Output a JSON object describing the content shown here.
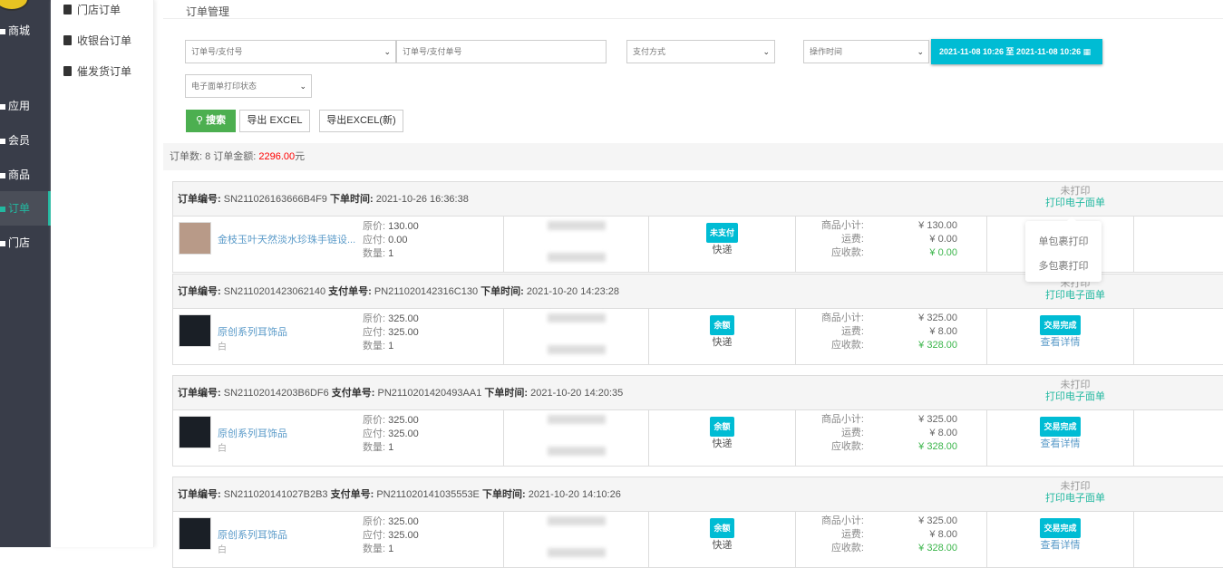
{
  "sidebar": {
    "items": [
      {
        "label": "商城"
      },
      {
        "label": "应用"
      },
      {
        "label": "会员"
      },
      {
        "label": "商品"
      },
      {
        "label": "订单",
        "active": true
      },
      {
        "label": "门店"
      }
    ]
  },
  "submenu": {
    "items": [
      {
        "label": "门店订单"
      },
      {
        "label": "收银台订单"
      },
      {
        "label": "催发货订单"
      }
    ]
  },
  "breadcrumb": "订单管理",
  "filters": {
    "order_type": "订单号/支付号",
    "order_input_placeholder": "订单号/支付单号",
    "pay_method": "支付方式",
    "time_type": "操作时间",
    "date_range": "2021-11-08 10:26 至 2021-11-08 10:26",
    "print_status": "电子面单打印状态"
  },
  "buttons": {
    "search": "搜索",
    "export": "导出 EXCEL",
    "export_new": "导出EXCEL(新)"
  },
  "summary": {
    "count_label": "订单数: 8 订单金额: ",
    "amount": "2296.00",
    "unit": "元"
  },
  "labels": {
    "order_no": "订单编号:",
    "pay_no": "支付单号:",
    "order_time": "下单时间:",
    "orig": "原价: ",
    "due": "应付: ",
    "qty": "数量: ",
    "subtotal": "商品小计:",
    "shipping": "运费:",
    "receivable": "应收款:",
    "unprinted": "未打印",
    "print_waybill": "打印电子面单",
    "view_detail": "查看详情"
  },
  "popup": {
    "single": "单包裹打印",
    "multi": "多包裹打印"
  },
  "accent": "#00bcd4",
  "orders": [
    {
      "order_no": "SN211026163666B4F9",
      "pay_no": "",
      "time": "2021-10-26 16:36:38",
      "product": "金枝玉叶天然淡水珍珠手链设...",
      "sku": "",
      "orig": "130.00",
      "due": "0.00",
      "qty": "1",
      "pay_badge": "未支付",
      "delivery": "快递",
      "subtotal": "¥ 130.00",
      "shipping": "¥ 0.00",
      "receivable": "¥ 0.00",
      "status": "",
      "thumb": "#b89a88"
    },
    {
      "order_no": "SN2110201423062140",
      "pay_no": "PN211020142316C130",
      "time": "2021-10-20 14:23:28",
      "product": "原创系列耳饰品",
      "sku": "白",
      "orig": "325.00",
      "due": "325.00",
      "qty": "1",
      "pay_badge": "余额",
      "delivery": "快递",
      "subtotal": "¥ 325.00",
      "shipping": "¥ 8.00",
      "receivable": "¥ 328.00",
      "status": "交易完成",
      "thumb": "#1a1f26"
    },
    {
      "order_no": "SN21102014203B6DF6",
      "pay_no": "PN2110201420493AA1",
      "time": "2021-10-20 14:20:35",
      "product": "原创系列耳饰品",
      "sku": "白",
      "orig": "325.00",
      "due": "325.00",
      "qty": "1",
      "pay_badge": "余额",
      "delivery": "快递",
      "subtotal": "¥ 325.00",
      "shipping": "¥ 8.00",
      "receivable": "¥ 328.00",
      "status": "交易完成",
      "thumb": "#1a1f26"
    },
    {
      "order_no": "SN211020141027B2B3",
      "pay_no": "PN211020141035553E",
      "time": "2021-10-20 14:10:26",
      "product": "原创系列耳饰品",
      "sku": "白",
      "orig": "325.00",
      "due": "325.00",
      "qty": "1",
      "pay_badge": "余额",
      "delivery": "快递",
      "subtotal": "¥ 325.00",
      "shipping": "¥ 8.00",
      "receivable": "¥ 328.00",
      "status": "交易完成",
      "thumb": "#1a1f26"
    }
  ]
}
